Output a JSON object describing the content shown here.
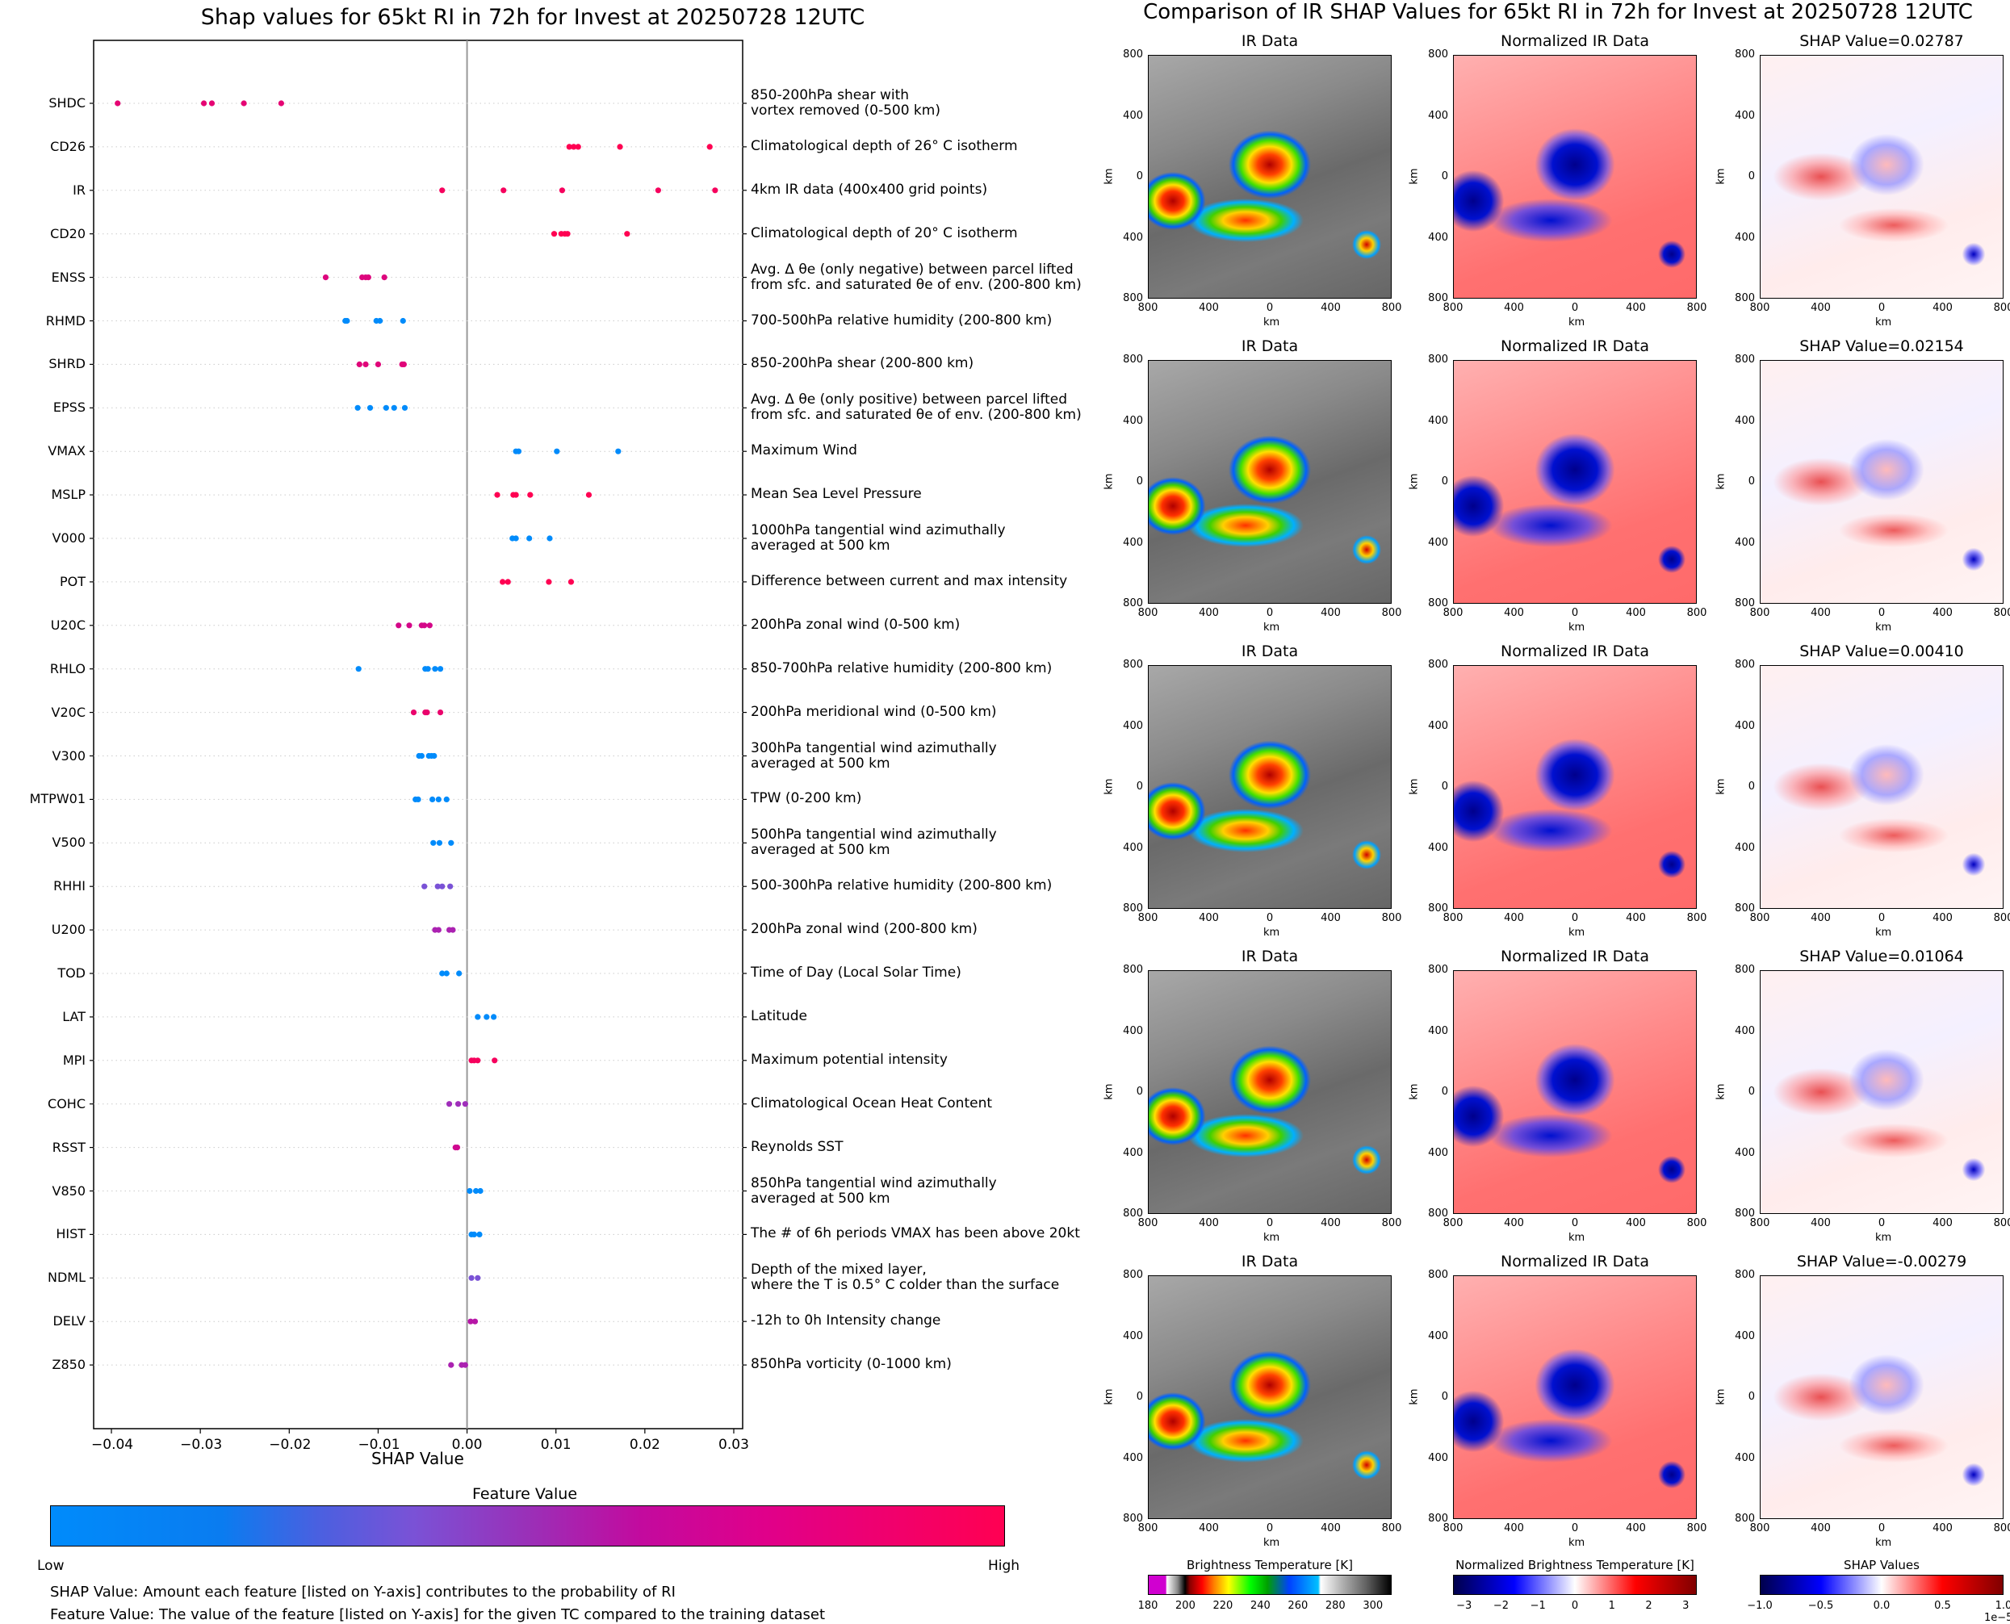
{
  "left_figure": {
    "title": "Shap values for 65kt RI in 72h for Invest at 20250728 12UTC",
    "xlabel": "SHAP Value",
    "colorbar": {
      "title": "Feature Value",
      "low_label": "Low",
      "high_label": "High",
      "colors": [
        "#008bfb",
        "#7a52d6",
        "#c30a9e",
        "#ff0052"
      ]
    },
    "notes": [
      "SHAP Value: Amount each feature [listed on Y-axis] contributes to the probability of RI",
      "Feature Value: The value of the feature [listed on Y-axis] for the given TC compared to the training dataset"
    ]
  },
  "chart_data": [
    {
      "type": "scatter",
      "title": "Shap values for 65kt RI in 72h for Invest at 20250728 12UTC",
      "xlabel": "SHAP Value",
      "ylabel": "",
      "xlim": [
        -0.042,
        0.031
      ],
      "xticks": [
        "−0.04",
        "−0.03",
        "−0.02",
        "−0.01",
        "0.00",
        "0.01",
        "0.02",
        "0.03"
      ],
      "xtick_values": [
        -0.04,
        -0.03,
        -0.02,
        -0.01,
        0.0,
        0.01,
        0.02,
        0.03
      ],
      "grid": "horizontal dotted",
      "colorscale": "feature value Low (blue) to High (pink)",
      "features": [
        {
          "name": "SHDC",
          "desc": "850-200hPa shear with\nvortex removed (0-500 km)",
          "feature_value": 0.85,
          "shap": [
            -0.0393,
            -0.0296,
            -0.0287,
            -0.0251,
            -0.0209
          ]
        },
        {
          "name": "CD26",
          "desc": "Climatological depth of 26° C isotherm",
          "feature_value": 1.0,
          "shap": [
            0.0115,
            0.012,
            0.0125,
            0.0172,
            0.0273
          ]
        },
        {
          "name": "IR",
          "desc": "4km IR data (400x400 grid points)",
          "feature_value": 0.95,
          "shap": [
            -0.0028,
            0.0041,
            0.0107,
            0.0215,
            0.0279
          ]
        },
        {
          "name": "CD20",
          "desc": "Climatological depth of 20° C isotherm",
          "feature_value": 1.0,
          "shap": [
            0.0098,
            0.0106,
            0.011,
            0.0113,
            0.018
          ]
        },
        {
          "name": "ENSS",
          "desc": "Avg. Δ θe (only negative) between parcel lifted\nfrom sfc. and saturated θe of env. (200-800 km)",
          "feature_value": 0.8,
          "shap": [
            -0.0159,
            -0.0118,
            -0.0114,
            -0.0111,
            -0.0093
          ]
        },
        {
          "name": "RHMD",
          "desc": "700-500hPa relative humidity (200-800 km)",
          "feature_value": 0.0,
          "shap": [
            -0.0137,
            -0.0135,
            -0.0102,
            -0.0098,
            -0.0072
          ]
        },
        {
          "name": "SHRD",
          "desc": "850-200hPa shear (200-800 km)",
          "feature_value": 0.82,
          "shap": [
            -0.0121,
            -0.0114,
            -0.01,
            -0.0073,
            -0.0071
          ]
        },
        {
          "name": "EPSS",
          "desc": "Avg. Δ θe (only positive) between parcel lifted\nfrom sfc. and saturated θe of env. (200-800 km)",
          "feature_value": 0.0,
          "shap": [
            -0.0123,
            -0.0109,
            -0.0091,
            -0.0082,
            -0.007
          ]
        },
        {
          "name": "VMAX",
          "desc": "Maximum Wind",
          "feature_value": 0.0,
          "shap": [
            0.0055,
            0.0058,
            0.0101,
            0.017
          ]
        },
        {
          "name": "MSLP",
          "desc": "Mean Sea Level Pressure",
          "feature_value": 1.0,
          "shap": [
            0.0034,
            0.0052,
            0.0055,
            0.0071,
            0.0137
          ]
        },
        {
          "name": "V000",
          "desc": "1000hPa tangential wind azimuthally\naveraged at 500 km",
          "feature_value": 0.0,
          "shap": [
            0.0051,
            0.0055,
            0.007,
            0.0093
          ]
        },
        {
          "name": "POT",
          "desc": "Difference between current and max intensity",
          "feature_value": 1.0,
          "shap": [
            0.004,
            0.0046,
            0.0092,
            0.0117
          ]
        },
        {
          "name": "U20C",
          "desc": "200hPa zonal wind (0-500 km)",
          "feature_value": 0.75,
          "shap": [
            -0.0077,
            -0.0065,
            -0.0051,
            -0.0048,
            -0.0042
          ]
        },
        {
          "name": "RHLO",
          "desc": "850-700hPa relative humidity (200-800 km)",
          "feature_value": 0.0,
          "shap": [
            -0.0122,
            -0.0047,
            -0.0044,
            -0.0036,
            -0.003
          ]
        },
        {
          "name": "V20C",
          "desc": "200hPa meridional wind (0-500 km)",
          "feature_value": 0.88,
          "shap": [
            -0.006,
            -0.0047,
            -0.0045,
            -0.003
          ]
        },
        {
          "name": "V300",
          "desc": "300hPa tangential wind azimuthally\naveraged at 500 km",
          "feature_value": 0.0,
          "shap": [
            -0.0054,
            -0.0051,
            -0.0043,
            -0.004,
            -0.0037
          ]
        },
        {
          "name": "MTPW01",
          "desc": "TPW (0-200 km)",
          "feature_value": 0.0,
          "shap": [
            -0.0058,
            -0.0055,
            -0.0039,
            -0.0032,
            -0.0023
          ]
        },
        {
          "name": "V500",
          "desc": "500hPa tangential wind azimuthally\naveraged at 500 km",
          "feature_value": 0.0,
          "shap": [
            -0.0038,
            -0.0031,
            -0.0018
          ]
        },
        {
          "name": "RHHI",
          "desc": "500-300hPa relative humidity (200-800 km)",
          "feature_value": 0.35,
          "shap": [
            -0.0048,
            -0.0033,
            -0.0028,
            -0.0019
          ]
        },
        {
          "name": "U200",
          "desc": "200hPa zonal wind (200-800 km)",
          "feature_value": 0.55,
          "shap": [
            -0.0036,
            -0.0032,
            -0.002,
            -0.0016
          ]
        },
        {
          "name": "TOD",
          "desc": "Time of Day (Local Solar Time)",
          "feature_value": 0.0,
          "shap": [
            -0.0028,
            -0.0023,
            -0.0009
          ]
        },
        {
          "name": "LAT",
          "desc": "Latitude",
          "feature_value": 0.0,
          "shap": [
            0.0012,
            0.0022,
            0.003
          ]
        },
        {
          "name": "MPI",
          "desc": "Maximum potential intensity",
          "feature_value": 0.95,
          "shap": [
            0.0005,
            0.0008,
            0.0012,
            0.0031
          ]
        },
        {
          "name": "COHC",
          "desc": "Climatological Ocean Heat Content",
          "feature_value": 0.5,
          "shap": [
            -0.002,
            -0.001,
            -0.0002
          ]
        },
        {
          "name": "RSST",
          "desc": "Reynolds SST",
          "feature_value": 0.72,
          "shap": [
            -0.0013,
            -0.0011
          ]
        },
        {
          "name": "V850",
          "desc": "850hPa tangential wind azimuthally\naveraged at 500 km",
          "feature_value": 0.0,
          "shap": [
            0.0003,
            0.001,
            0.0015
          ]
        },
        {
          "name": "HIST",
          "desc": "The # of 6h periods VMAX has been above 20kt",
          "feature_value": 0.0,
          "shap": [
            0.0005,
            0.0008,
            0.0014
          ]
        },
        {
          "name": "NDML",
          "desc": "Depth of the mixed layer,\nwhere the T is 0.5° C colder than the surface",
          "feature_value": 0.35,
          "shap": [
            0.0005,
            0.0012
          ]
        },
        {
          "name": "DELV",
          "desc": "-12h to 0h Intensity change",
          "feature_value": 0.6,
          "shap": [
            0.0004,
            0.0009
          ]
        },
        {
          "name": "Z850",
          "desc": "850hPa vorticity (0-1000 km)",
          "feature_value": 0.55,
          "shap": [
            -0.0018,
            -0.0006,
            -0.0002
          ]
        }
      ]
    },
    {
      "type": "heatmap",
      "title": "Comparison of IR SHAP Values for 65kt RI in 72h for Invest at 20250728 12UTC",
      "column_titles": [
        "IR Data",
        "Normalized IR Data"
      ],
      "shap_titles": [
        "SHAP Value=0.02787",
        "SHAP Value=0.02154",
        "SHAP Value=0.00410",
        "SHAP Value=0.01064",
        "SHAP Value=-0.00279"
      ],
      "shap_values": [
        0.02787,
        0.02154,
        0.0041,
        0.01064,
        -0.00279
      ],
      "axis_ticks": [
        "800",
        "400",
        "0",
        "400",
        "800"
      ],
      "xlabel": "km",
      "ylabel": "km",
      "colorbars": [
        {
          "title": "Brightness Temperature [K]",
          "ticks": [
            "180",
            "200",
            "220",
            "240",
            "260",
            "280",
            "300"
          ],
          "range": [
            180,
            310
          ]
        },
        {
          "title": "Normalized Brightness Temperature [K]",
          "ticks": [
            "−3",
            "−2",
            "−1",
            "0",
            "1",
            "2",
            "3"
          ],
          "range": [
            -3.3,
            3.3
          ]
        },
        {
          "title": "SHAP Values",
          "ticks": [
            "−1.0",
            "−0.5",
            "0.0",
            "0.5",
            "1.0"
          ],
          "range": [
            -1.0,
            1.0
          ],
          "offset_label": "1e−5"
        }
      ]
    }
  ]
}
